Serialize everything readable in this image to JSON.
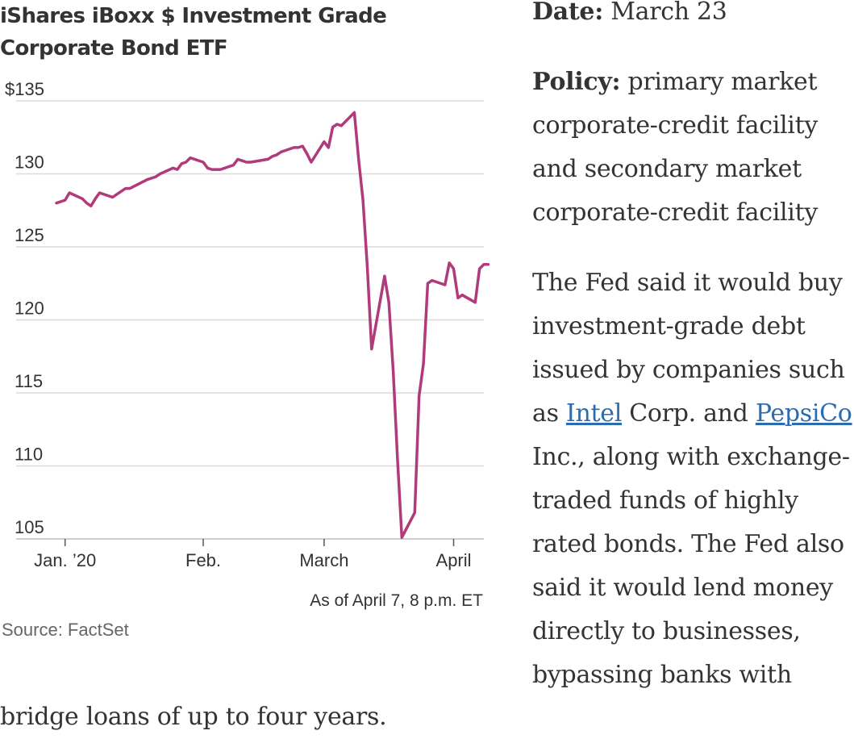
{
  "chart_data": {
    "type": "line",
    "title": "iShares iBoxx $ Investment Grade Corporate Bond ETF",
    "ylim": [
      105,
      135
    ],
    "y_ticks": [
      {
        "value": 135,
        "label": "$135"
      },
      {
        "value": 130,
        "label": "130"
      },
      {
        "value": 125,
        "label": "125"
      },
      {
        "value": 120,
        "label": "120"
      },
      {
        "value": 115,
        "label": "115"
      },
      {
        "value": 110,
        "label": "110"
      },
      {
        "value": 105,
        "label": "105"
      }
    ],
    "x_ticks": [
      {
        "value": "2020-01-02",
        "label": "Jan. ’20"
      },
      {
        "value": "2020-02-03",
        "label": "Feb."
      },
      {
        "value": "2020-03-02",
        "label": "March"
      },
      {
        "value": "2020-04-01",
        "label": "April"
      }
    ],
    "xlim": [
      "2019-12-31",
      "2020-04-08"
    ],
    "grid": true,
    "series": [
      {
        "color": "#b03a7a",
        "points": [
          [
            "2019-12-31",
            128.0
          ],
          [
            "2020-01-02",
            128.2
          ],
          [
            "2020-01-03",
            128.7
          ],
          [
            "2020-01-06",
            128.3
          ],
          [
            "2020-01-07",
            128.0
          ],
          [
            "2020-01-08",
            127.8
          ],
          [
            "2020-01-09",
            128.3
          ],
          [
            "2020-01-10",
            128.7
          ],
          [
            "2020-01-13",
            128.4
          ],
          [
            "2020-01-14",
            128.6
          ],
          [
            "2020-01-15",
            128.8
          ],
          [
            "2020-01-16",
            129.0
          ],
          [
            "2020-01-17",
            129.0
          ],
          [
            "2020-01-21",
            129.6
          ],
          [
            "2020-01-22",
            129.7
          ],
          [
            "2020-01-23",
            129.8
          ],
          [
            "2020-01-24",
            130.0
          ],
          [
            "2020-01-27",
            130.4
          ],
          [
            "2020-01-28",
            130.3
          ],
          [
            "2020-01-29",
            130.7
          ],
          [
            "2020-01-30",
            130.8
          ],
          [
            "2020-01-31",
            131.1
          ],
          [
            "2020-02-03",
            130.8
          ],
          [
            "2020-02-04",
            130.4
          ],
          [
            "2020-02-05",
            130.3
          ],
          [
            "2020-02-06",
            130.3
          ],
          [
            "2020-02-07",
            130.3
          ],
          [
            "2020-02-10",
            130.6
          ],
          [
            "2020-02-11",
            131.0
          ],
          [
            "2020-02-12",
            130.9
          ],
          [
            "2020-02-13",
            130.8
          ],
          [
            "2020-02-14",
            130.8
          ],
          [
            "2020-02-18",
            131.0
          ],
          [
            "2020-02-19",
            131.2
          ],
          [
            "2020-02-20",
            131.3
          ],
          [
            "2020-02-21",
            131.5
          ],
          [
            "2020-02-24",
            131.8
          ],
          [
            "2020-02-25",
            131.8
          ],
          [
            "2020-02-26",
            131.9
          ],
          [
            "2020-02-27",
            131.4
          ],
          [
            "2020-02-28",
            130.8
          ],
          [
            "2020-03-02",
            132.2
          ],
          [
            "2020-03-03",
            131.8
          ],
          [
            "2020-03-04",
            133.2
          ],
          [
            "2020-03-05",
            133.4
          ],
          [
            "2020-03-06",
            133.3
          ],
          [
            "2020-03-09",
            134.2
          ],
          [
            "2020-03-10",
            131.0
          ],
          [
            "2020-03-11",
            128.2
          ],
          [
            "2020-03-12",
            123.6
          ],
          [
            "2020-03-13",
            118.0
          ],
          [
            "2020-03-16",
            123.0
          ],
          [
            "2020-03-17",
            121.2
          ],
          [
            "2020-03-18",
            116.5
          ],
          [
            "2020-03-19",
            110.5
          ],
          [
            "2020-03-20",
            105.1
          ],
          [
            "2020-03-23",
            106.8
          ],
          [
            "2020-03-24",
            114.8
          ],
          [
            "2020-03-25",
            117.0
          ],
          [
            "2020-03-26",
            122.5
          ],
          [
            "2020-03-27",
            122.7
          ],
          [
            "2020-03-30",
            122.4
          ],
          [
            "2020-03-31",
            123.9
          ],
          [
            "2020-04-01",
            123.5
          ],
          [
            "2020-04-02",
            121.5
          ],
          [
            "2020-04-03",
            121.7
          ],
          [
            "2020-04-06",
            121.2
          ],
          [
            "2020-04-07",
            123.5
          ],
          [
            "2020-04-08",
            123.8
          ],
          [
            "2020-04-09",
            123.8
          ]
        ]
      }
    ]
  },
  "chart_footer": {
    "as_of": "As of April 7, 8 p.m. ET",
    "source": "Source: FactSet"
  },
  "sidebar": {
    "date_label": "Date:",
    "date_value": " March 23",
    "policy_label": "Policy:",
    "policy_value": " primary market corporate-credit facility and secondary market corporate-credit facility",
    "body_before_intel": "The Fed said it would buy investment-grade debt issued by companies such as ",
    "intel_link": "Intel",
    "body_between": " Corp. and ",
    "pepsico_link": "PepsiCo",
    "body_after": " Inc., along with exchange-traded funds of highly rated bonds. The Fed also said it would lend money directly to businesses, bypassing banks with"
  },
  "tail_text": "bridge loans of up to four years.",
  "colors": {
    "line": "#b03a7a",
    "grid": "#dcdcdc",
    "text": "#333333",
    "muted": "#666666",
    "link": "#2b6cb0"
  }
}
